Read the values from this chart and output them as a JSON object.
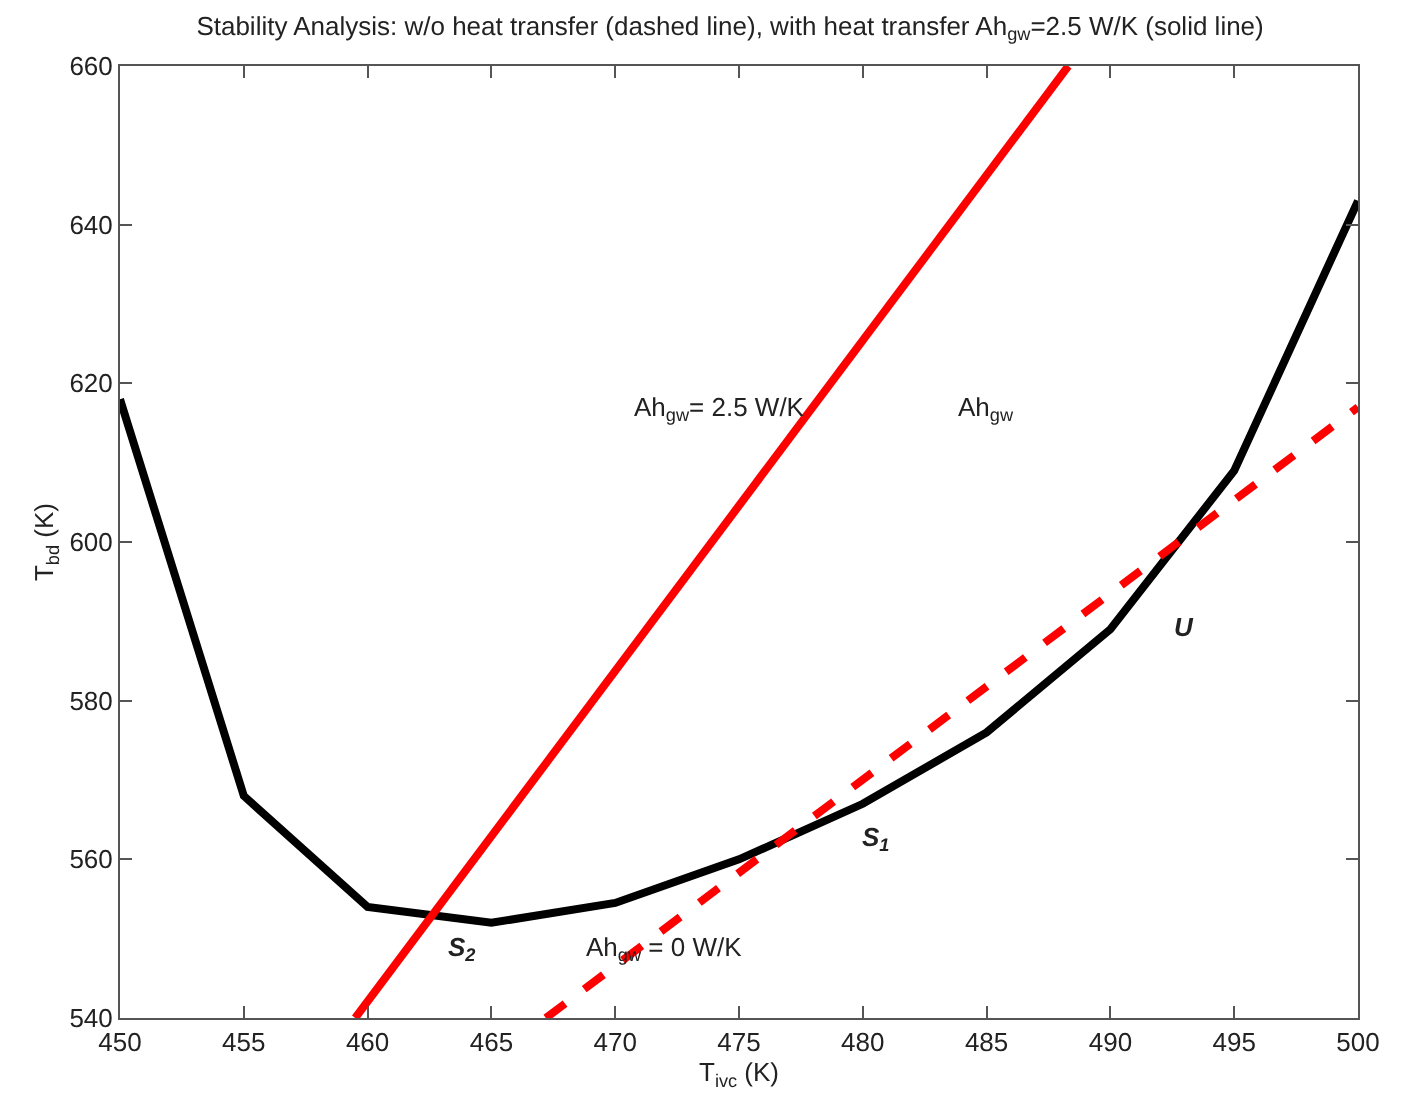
{
  "chart_data": {
    "type": "line",
    "title": "Stability Analysis: w/o heat transfer (dashed line), with heat transfer Ah$_{gw}$=2.5 W/K (solid line)",
    "xlabel": "T$_{ivc}$ (K)",
    "ylabel": "T$_{bd}$ (K)",
    "xlim": [
      450,
      500
    ],
    "xticks": [
      450,
      455,
      460,
      465,
      470,
      475,
      480,
      485,
      490,
      495,
      500
    ],
    "ylim": [
      540,
      660
    ],
    "yticks": [
      540,
      560,
      580,
      600,
      620,
      640,
      660
    ],
    "marker": "none",
    "series": [
      {
        "color": "#000000",
        "line_style": "solid",
        "x": [
          450,
          455,
          460,
          465,
          470,
          475,
          480,
          485,
          490,
          495,
          500
        ],
        "values": [
          618,
          568,
          554,
          552,
          554.5,
          560,
          567,
          576,
          589,
          609,
          643
        ]
      },
      {
        "color": "#ff0000",
        "line_style": "solid",
        "x": [
          459.5,
          488.3
        ],
        "values": [
          540,
          660
        ]
      },
      {
        "color": "#ff0000",
        "line_style": "dashed",
        "x": [
          467.2,
          500
        ],
        "values": [
          540,
          617
        ]
      }
    ],
    "annotations": [
      "Ah$_{gw}$= 2.5 W/K",
      "Ah$_{gw}$",
      "Ah$_{gw}$ = 0 W/K",
      "U",
      "S$_{1}$",
      "S$_{2}$"
    ]
  }
}
